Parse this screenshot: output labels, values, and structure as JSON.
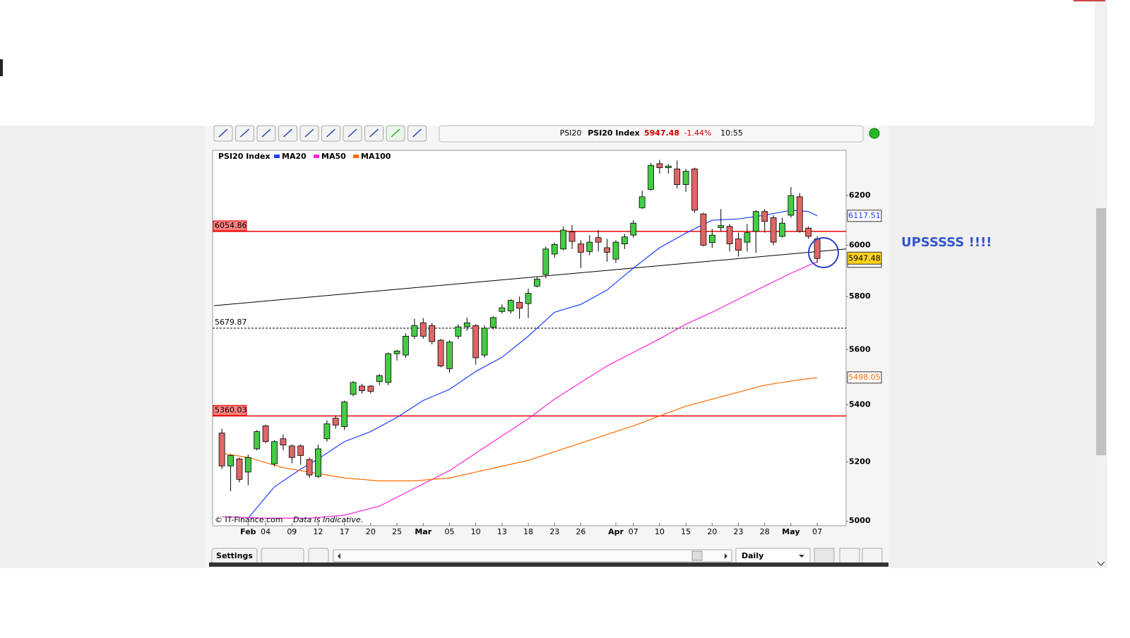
{
  "toolbar": {
    "symbol": "PSI20",
    "name": "PSI20 Index",
    "price": 5947.48,
    "change": "-1.44%",
    "time": "10:55"
  },
  "chart_data": {
    "type": "candlestick",
    "log_scale": true,
    "candles": {
      "name": "PSI20 Index",
      "up_color": "#44cc44",
      "down_color": "#e06666",
      "open": [
        5300,
        5186,
        5210,
        5165,
        5245,
        5325,
        5193,
        5280,
        5255,
        5255,
        5208,
        5150,
        5280,
        5352,
        5322,
        5437,
        5467,
        5467,
        5483,
        5480,
        5585,
        5580,
        5650,
        5700,
        5690,
        5635,
        5530,
        5650,
        5685,
        5690,
        5580,
        5683,
        5743,
        5745,
        5778,
        5773,
        5840,
        5885,
        5965,
        5985,
        6053,
        6005,
        5975,
        6030,
        5990,
        5945,
        6005,
        6040,
        6150,
        6225,
        6332,
        6315,
        6310,
        6245,
        6310,
        6125,
        6010,
        6070,
        6075,
        6025,
        6012,
        6055,
        6135,
        6110,
        6035,
        6120,
        6195,
        6068,
        6025
      ],
      "high": [
        5315,
        5225,
        5215,
        5225,
        5310,
        5330,
        5275,
        5295,
        5260,
        5260,
        5215,
        5260,
        5345,
        5362,
        5415,
        5485,
        5475,
        5470,
        5510,
        5590,
        5600,
        5660,
        5715,
        5718,
        5700,
        5640,
        5635,
        5695,
        5720,
        5695,
        5690,
        5725,
        5770,
        5790,
        5800,
        5830,
        5875,
        5995,
        6010,
        6075,
        6080,
        6020,
        6040,
        6060,
        6025,
        6020,
        6045,
        6100,
        6220,
        6335,
        6348,
        6330,
        6345,
        6310,
        6315,
        6130,
        6065,
        6145,
        6085,
        6050,
        6085,
        6140,
        6145,
        6120,
        6110,
        6235,
        6210,
        6075,
        6035
      ],
      "low": [
        5175,
        5100,
        5130,
        5120,
        5240,
        5265,
        5185,
        5240,
        5195,
        5190,
        5145,
        5145,
        5270,
        5315,
        5310,
        5430,
        5440,
        5440,
        5470,
        5470,
        5560,
        5570,
        5640,
        5640,
        5620,
        5535,
        5515,
        5640,
        5670,
        5545,
        5570,
        5675,
        5735,
        5735,
        5715,
        5718,
        5835,
        5870,
        5950,
        5980,
        5985,
        5910,
        5960,
        5975,
        5935,
        5930,
        5985,
        6030,
        6145,
        6220,
        6290,
        6290,
        6230,
        6215,
        6130,
        5995,
        5990,
        6055,
        5975,
        5955,
        5975,
        5970,
        6050,
        6000,
        6030,
        6110,
        6050,
        6025,
        5930
      ],
      "close": [
        5186,
        5222,
        5140,
        5215,
        5305,
        5270,
        5270,
        5258,
        5215,
        5222,
        5155,
        5245,
        5332,
        5328,
        5410,
        5480,
        5450,
        5448,
        5505,
        5585,
        5595,
        5650,
        5690,
        5650,
        5630,
        5540,
        5628,
        5685,
        5700,
        5570,
        5680,
        5720,
        5757,
        5785,
        5755,
        5812,
        5867,
        5985,
        6003,
        6060,
        6015,
        5972,
        6012,
        6012,
        5972,
        6012,
        6033,
        6088,
        6195,
        6325,
        6315,
        6322,
        6245,
        6300,
        6140,
        6000,
        6040,
        6078,
        6005,
        5980,
        6050,
        6135,
        6095,
        6012,
        6088,
        6200,
        6055,
        6035,
        5947.48
      ]
    },
    "series": [
      {
        "name": "MA20",
        "color": "#1a3cff",
        "x": [
          3,
          6,
          9,
          11,
          14,
          17,
          20,
          23,
          26,
          29,
          32,
          35,
          38,
          41,
          44,
          47,
          50,
          53,
          56,
          59,
          62,
          65,
          67,
          68
        ],
        "values": [
          5010,
          5115,
          5175,
          5210,
          5270,
          5305,
          5355,
          5415,
          5455,
          5520,
          5572,
          5650,
          5740,
          5770,
          5825,
          5910,
          5990,
          6048,
          6100,
          6105,
          6120,
          6140,
          6135,
          6117.51
        ]
      },
      {
        "name": "MA50",
        "color": "#ff22dd",
        "x": [
          0,
          5,
          10,
          14,
          18,
          22,
          26,
          29,
          32,
          35,
          38,
          41,
          44,
          47,
          50,
          53,
          56,
          59,
          62,
          65,
          68
        ],
        "values": [
          5015,
          5010,
          5010,
          5020,
          5050,
          5110,
          5170,
          5230,
          5290,
          5350,
          5420,
          5480,
          5540,
          5590,
          5640,
          5695,
          5740,
          5790,
          5840,
          5890,
          5935
        ]
      },
      {
        "name": "MA100",
        "color": "#ff6a00",
        "x": [
          0,
          3,
          7,
          11,
          14,
          18,
          22,
          26,
          29,
          32,
          35,
          38,
          41,
          44,
          47,
          50,
          53,
          56,
          59,
          62,
          65,
          68
        ],
        "values": [
          5230,
          5215,
          5180,
          5160,
          5145,
          5135,
          5135,
          5145,
          5165,
          5185,
          5205,
          5235,
          5265,
          5295,
          5325,
          5360,
          5395,
          5420,
          5445,
          5470,
          5485,
          5498.05
        ]
      }
    ],
    "levels": [
      {
        "value": 6054.86,
        "color": "#ee0000",
        "style": "solid"
      },
      {
        "value": 5679.87,
        "color": "#000000",
        "style": "dashed"
      },
      {
        "value": 5360.03,
        "color": "#ee0000",
        "style": "solid"
      }
    ],
    "trendline": {
      "x": [
        -0.9,
        71.3
      ],
      "values": [
        5765,
        5985
      ],
      "color": "#000000"
    },
    "xlim": [
      -0.9,
      71.3
    ],
    "ylim": [
      4985,
      6385
    ],
    "yticks": [
      5000,
      5200,
      5400,
      5600,
      5800,
      6000,
      6200
    ],
    "xticks": [
      {
        "value": 3,
        "label": "Feb"
      },
      {
        "value": 5,
        "label": "04"
      },
      {
        "value": 8,
        "label": "09"
      },
      {
        "value": 11,
        "label": "12"
      },
      {
        "value": 14,
        "label": "17"
      },
      {
        "value": 17,
        "label": "20"
      },
      {
        "value": 20,
        "label": "25"
      },
      {
        "value": 23,
        "label": "Mar"
      },
      {
        "value": 26,
        "label": "05"
      },
      {
        "value": 29,
        "label": "10"
      },
      {
        "value": 32,
        "label": "13"
      },
      {
        "value": 35,
        "label": "18"
      },
      {
        "value": 38,
        "label": "23"
      },
      {
        "value": 41,
        "label": "26"
      },
      {
        "value": 45,
        "label": "Apr"
      },
      {
        "value": 47,
        "label": "07"
      },
      {
        "value": 50,
        "label": "10"
      },
      {
        "value": 53,
        "label": "15"
      },
      {
        "value": 56,
        "label": "20"
      },
      {
        "value": 59,
        "label": "23"
      },
      {
        "value": 62,
        "label": "28"
      },
      {
        "value": 65,
        "label": "May"
      },
      {
        "value": 68,
        "label": "07"
      }
    ]
  },
  "annotation": "UPSSSSS !!!!",
  "footer": {
    "copyright": "© IT-Finance.com",
    "note": "Data is Indicative."
  },
  "controls": {
    "settings": "Settings",
    "interval": "Daily"
  }
}
